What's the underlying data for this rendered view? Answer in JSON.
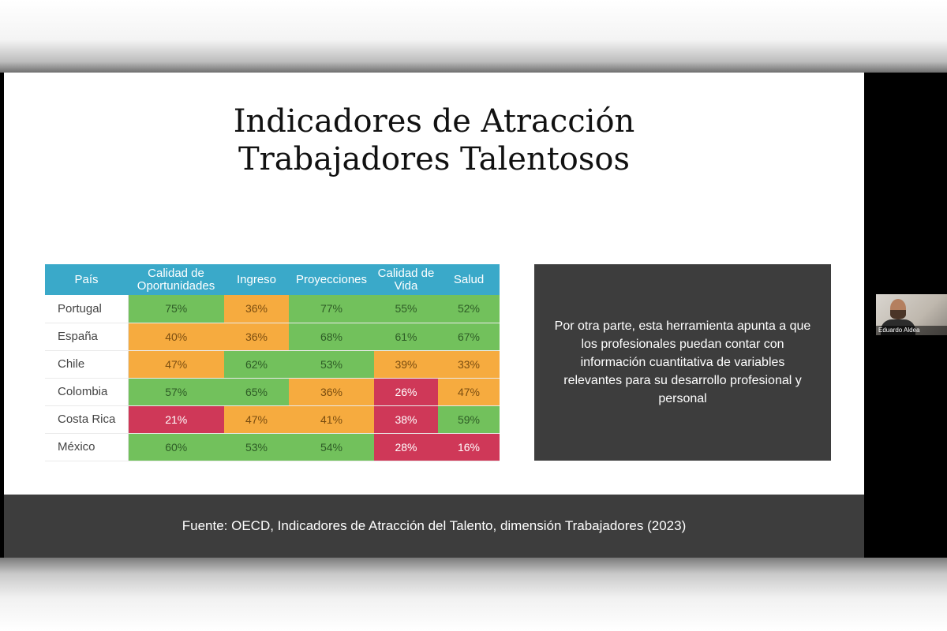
{
  "slide": {
    "title_line1": "Indicadores de Atracción",
    "title_line2": "Trabajadores Talentosos",
    "table": {
      "headers": [
        "País",
        "Calidad de Oportunidades",
        "Ingreso",
        "Proyecciones",
        "Calidad de Vida",
        "Salud"
      ],
      "rows": [
        {
          "country": "Portugal",
          "values": [
            "75%",
            "36%",
            "77%",
            "55%",
            "52%"
          ]
        },
        {
          "country": "España",
          "values": [
            "40%",
            "36%",
            "68%",
            "61%",
            "67%"
          ]
        },
        {
          "country": "Chile",
          "values": [
            "47%",
            "62%",
            "53%",
            "39%",
            "33%"
          ]
        },
        {
          "country": "Colombia",
          "values": [
            "57%",
            "65%",
            "36%",
            "26%",
            "47%"
          ]
        },
        {
          "country": "Costa Rica",
          "values": [
            "21%",
            "47%",
            "41%",
            "38%",
            "59%"
          ]
        },
        {
          "country": "México",
          "values": [
            "60%",
            "53%",
            "54%",
            "28%",
            "16%"
          ]
        }
      ]
    },
    "quote": "Por otra parte, esta herramienta apunta a que los profesionales puedan contar con información cuantitativa de variables relevantes para su desarrollo profesional y personal",
    "footer": "Fuente: OECD, Indicadores de Atracción del Talento, dimensión Trabajadores (2023)"
  },
  "participant": {
    "name": "Eduardo Aldea"
  },
  "colors": {
    "header": "#3aa9c9",
    "green": "#72c15c",
    "orange": "#f6ab3f",
    "red": "#cf3858",
    "panel": "#3d3d3d"
  }
}
